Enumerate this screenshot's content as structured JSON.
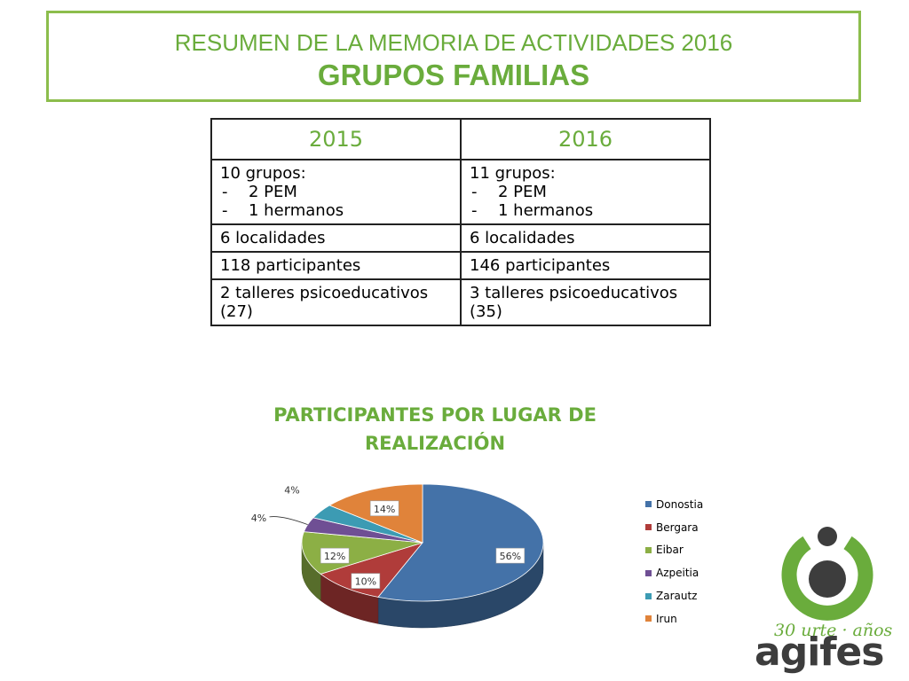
{
  "header": {
    "line1": "RESUMEN DE LA MEMORIA DE ACTIVIDADES 2016",
    "line2": "GRUPOS FAMILIAS"
  },
  "table": {
    "columns": [
      "2015",
      "2016"
    ],
    "groups": [
      {
        "title": "10 grupos:",
        "items": [
          "2 PEM",
          "1 hermanos"
        ]
      },
      {
        "title": "11 grupos:",
        "items": [
          "2 PEM",
          "1 hermanos"
        ]
      }
    ],
    "rows": [
      [
        "6 localidades",
        "6 localidades"
      ],
      [
        "118 participantes",
        "146 participantes"
      ],
      [
        "2 talleres psicoeducativos (27)",
        "3 talleres psicoeducativos (35)"
      ]
    ]
  },
  "chart_data": {
    "type": "pie",
    "title": "PARTICIPANTES POR LUGAR DE REALIZACIÓN",
    "labels": [
      "Donostia",
      "Bergara",
      "Eibar",
      "Azpeitia",
      "Zarautz",
      "Irun"
    ],
    "values": [
      56,
      10,
      12,
      4,
      4,
      14
    ],
    "value_labels": [
      "56%",
      "10%",
      "12%",
      "4%",
      "4%",
      "14%"
    ],
    "colors": [
      "#4472a8",
      "#b03c3a",
      "#8caf45",
      "#6f4f94",
      "#3c9bb3",
      "#e0833a"
    ],
    "legend_position": "right",
    "style": "3d"
  },
  "logo": {
    "tagline": "30 urte · años",
    "wordmark": "agifes",
    "green": "#6aac3c",
    "dark": "#3d3d3d"
  }
}
